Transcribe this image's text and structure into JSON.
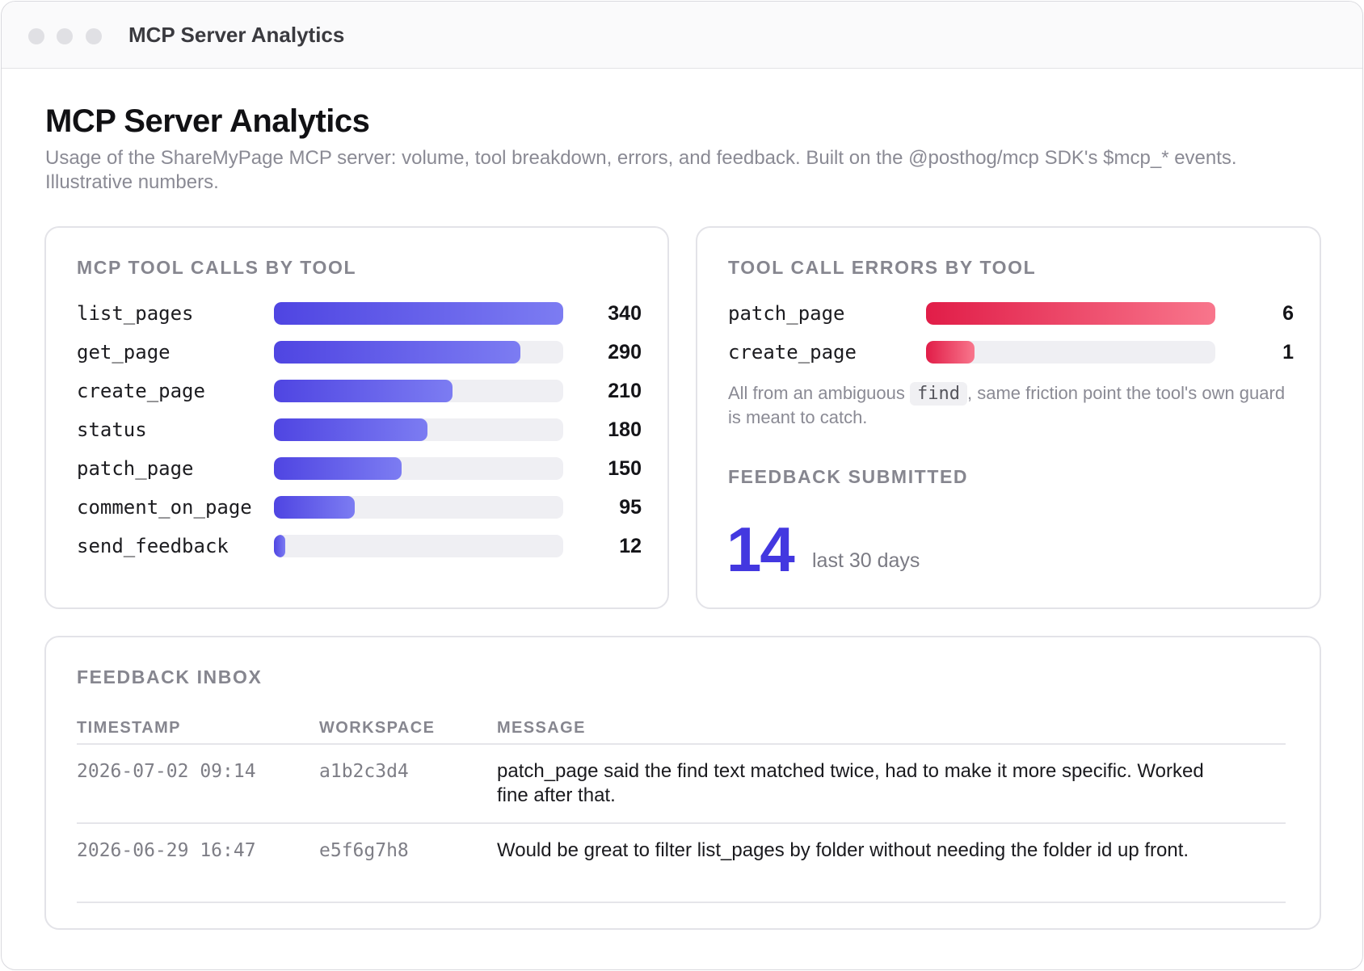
{
  "window": {
    "title": "MCP Server Analytics"
  },
  "header": {
    "title": "MCP Server Analytics",
    "subtitle": "Usage of the ShareMyPage MCP server: volume, tool breakdown, errors, and feedback. Built on the @posthog/mcp SDK's $mcp_* events. Illustrative numbers."
  },
  "tool_calls": {
    "label": "MCP TOOL CALLS BY TOOL",
    "max": 340,
    "rows": [
      {
        "tool": "list_pages",
        "count": 340
      },
      {
        "tool": "get_page",
        "count": 290
      },
      {
        "tool": "create_page",
        "count": 210
      },
      {
        "tool": "status",
        "count": 180
      },
      {
        "tool": "patch_page",
        "count": 150
      },
      {
        "tool": "comment_on_page",
        "count": 95
      },
      {
        "tool": "send_feedback",
        "count": 12
      }
    ]
  },
  "errors": {
    "label": "TOOL CALL ERRORS BY TOOL",
    "max": 6,
    "rows": [
      {
        "tool": "patch_page",
        "count": 6
      },
      {
        "tool": "create_page",
        "count": 1
      }
    ],
    "note_before": "All from an ambiguous",
    "note_code": "find",
    "note_after": ", same friction point the tool's own guard is meant to catch."
  },
  "feedback_summary": {
    "label": "FEEDBACK SUBMITTED",
    "count": "14",
    "period": "last 30 days"
  },
  "inbox": {
    "label": "FEEDBACK INBOX",
    "columns": {
      "timestamp": "TIMESTAMP",
      "workspace": "WORKSPACE",
      "message": "MESSAGE"
    },
    "rows": [
      {
        "timestamp": "2026-07-02 09:14",
        "workspace": "a1b2c3d4",
        "message": "patch_page said the find text matched twice, had to make it more specific. Worked fine after that."
      },
      {
        "timestamp": "2026-06-29 16:47",
        "workspace": "e5f6g7h8",
        "message": "Would be great to filter list_pages by folder without needing the folder id up front."
      }
    ]
  },
  "colors": {
    "bar_blue_start": "#4f45e2",
    "bar_blue_end": "#7c7cf2",
    "bar_red_start": "#e11d48",
    "bar_red_end": "#f8768c",
    "accent": "#4338e0"
  }
}
